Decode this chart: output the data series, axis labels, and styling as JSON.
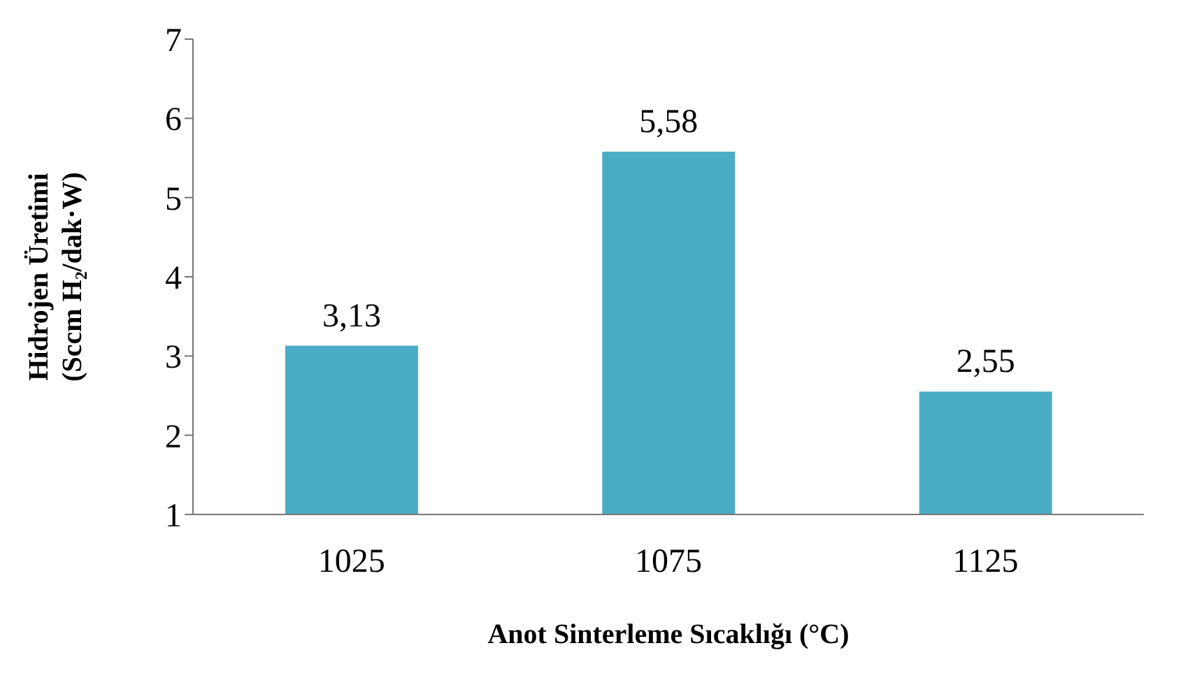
{
  "chart_data": {
    "type": "bar",
    "categories": [
      "1025",
      "1075",
      "1125"
    ],
    "values": [
      3.13,
      5.58,
      2.55
    ],
    "value_labels": [
      "3,13",
      "5,58",
      "2,55"
    ],
    "color": "#4bacc6",
    "xlabel": "Anot Sinterleme Sıcaklığı (°C)",
    "ylabel": "Hidrojen Üretimi (Sccm H₂/dak·W)",
    "ylim": [
      1,
      7
    ],
    "yticks": [
      1,
      2,
      3,
      4,
      5,
      6,
      7
    ],
    "grid": false
  }
}
